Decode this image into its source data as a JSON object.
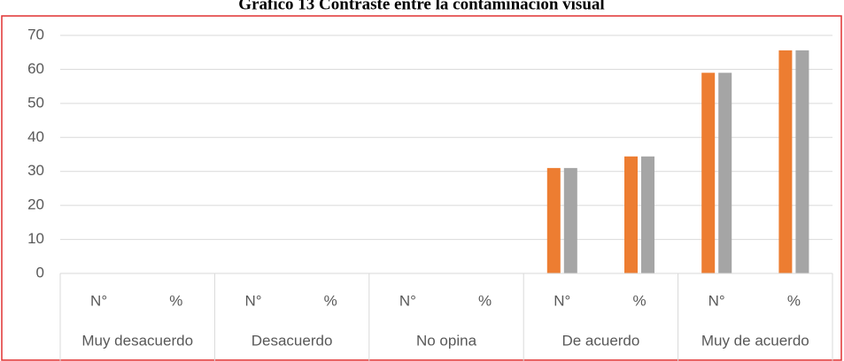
{
  "chart_data": {
    "type": "bar",
    "title": "Gráfico 13 Contraste entre la contaminación visual",
    "categories": [
      "N°",
      "%",
      "N°",
      "%",
      "N°",
      "%",
      "N°",
      "%",
      "N°",
      "%"
    ],
    "groups": [
      "Muy desacuerdo",
      "Desacuerdo",
      "No opina",
      "De acuerdo",
      "Muy de acuerdo"
    ],
    "series": [
      {
        "color": "#ed7d31",
        "values": [
          0,
          0,
          0,
          0,
          0,
          0,
          31,
          34.4,
          59,
          65.6
        ]
      },
      {
        "color": "#a5a5a5",
        "values": [
          0,
          0,
          0,
          0,
          0,
          0,
          31,
          34.4,
          59,
          65.6
        ]
      }
    ],
    "ylim": [
      0,
      70
    ],
    "yticks": [
      0,
      10,
      20,
      30,
      40,
      50,
      60,
      70
    ],
    "grid": true
  }
}
